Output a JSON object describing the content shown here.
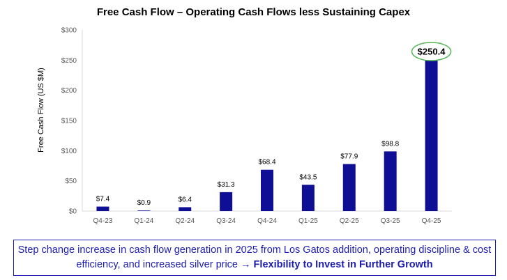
{
  "chart_data": {
    "type": "bar",
    "title": "Free Cash Flow – Operating Cash Flows less Sustaining Capex",
    "ylabel": "Free Cash Flow (US $M)",
    "xlabel": "",
    "ylim": [
      0,
      300
    ],
    "yticks": [
      0,
      50,
      100,
      150,
      200,
      250,
      300
    ],
    "ytick_labels": [
      "$0",
      "$50",
      "$100",
      "$150",
      "$200",
      "$250",
      "$300"
    ],
    "grid": false,
    "categories": [
      "Q4-23",
      "Q1-24",
      "Q2-24",
      "Q3-24",
      "Q4-24",
      "Q1-25",
      "Q2-25",
      "Q3-25",
      "Q4-25"
    ],
    "values": [
      7.4,
      0.9,
      6.4,
      31.3,
      68.4,
      43.5,
      77.9,
      98.8,
      250.4
    ],
    "data_labels": [
      "$7.4",
      "$0.9",
      "$6.4",
      "$31.3",
      "$68.4",
      "$43.5",
      "$77.9",
      "$98.8",
      "$250.4"
    ],
    "highlight_index": 8,
    "bar_color": "#0f0f96",
    "highlight_color": "#5cb85c"
  },
  "callout": {
    "text_part1": "Step change increase in cash flow generation in 2025 from Los Gatos addition, operating discipline & cost efficiency, and increased silver price ",
    "arrow": "→",
    "text_bold": " Flexibility to Invest in Further Growth",
    "color": "#1c1cb0"
  }
}
